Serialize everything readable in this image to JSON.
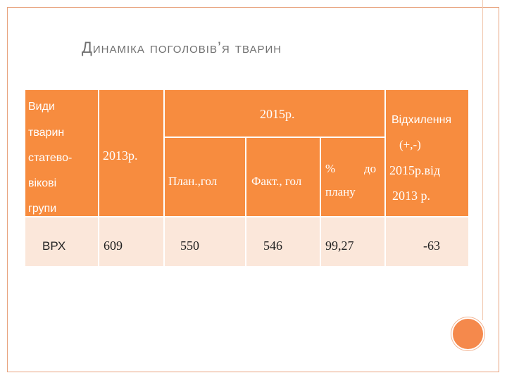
{
  "slide": {
    "title": "Динаміка поголовів’я тварин"
  },
  "table": {
    "header": {
      "col1_lines": [
        "Види",
        "тварин",
        "статево-",
        "вікові",
        "групи"
      ],
      "col2": "2013р.",
      "group_2015": "2015р.",
      "plan": "План.,гол",
      "fact": "Факт., гол",
      "pct_line1_left": "%",
      "pct_line1_right": "до",
      "pct_line2": "плану",
      "dev_lines": [
        "Відхилення",
        "(+,-)",
        "2015р.від",
        "2013 р."
      ]
    },
    "rows": [
      {
        "group": "ВРХ",
        "y2013": "609",
        "plan": "550",
        "fact": "546",
        "pct": "99,27",
        "dev": "-63"
      }
    ]
  },
  "colors": {
    "header_bg": "#f78c3f",
    "body_bg": "#fbe7da",
    "accent_circle": "#f5894c",
    "frame": "#e8a37e"
  }
}
